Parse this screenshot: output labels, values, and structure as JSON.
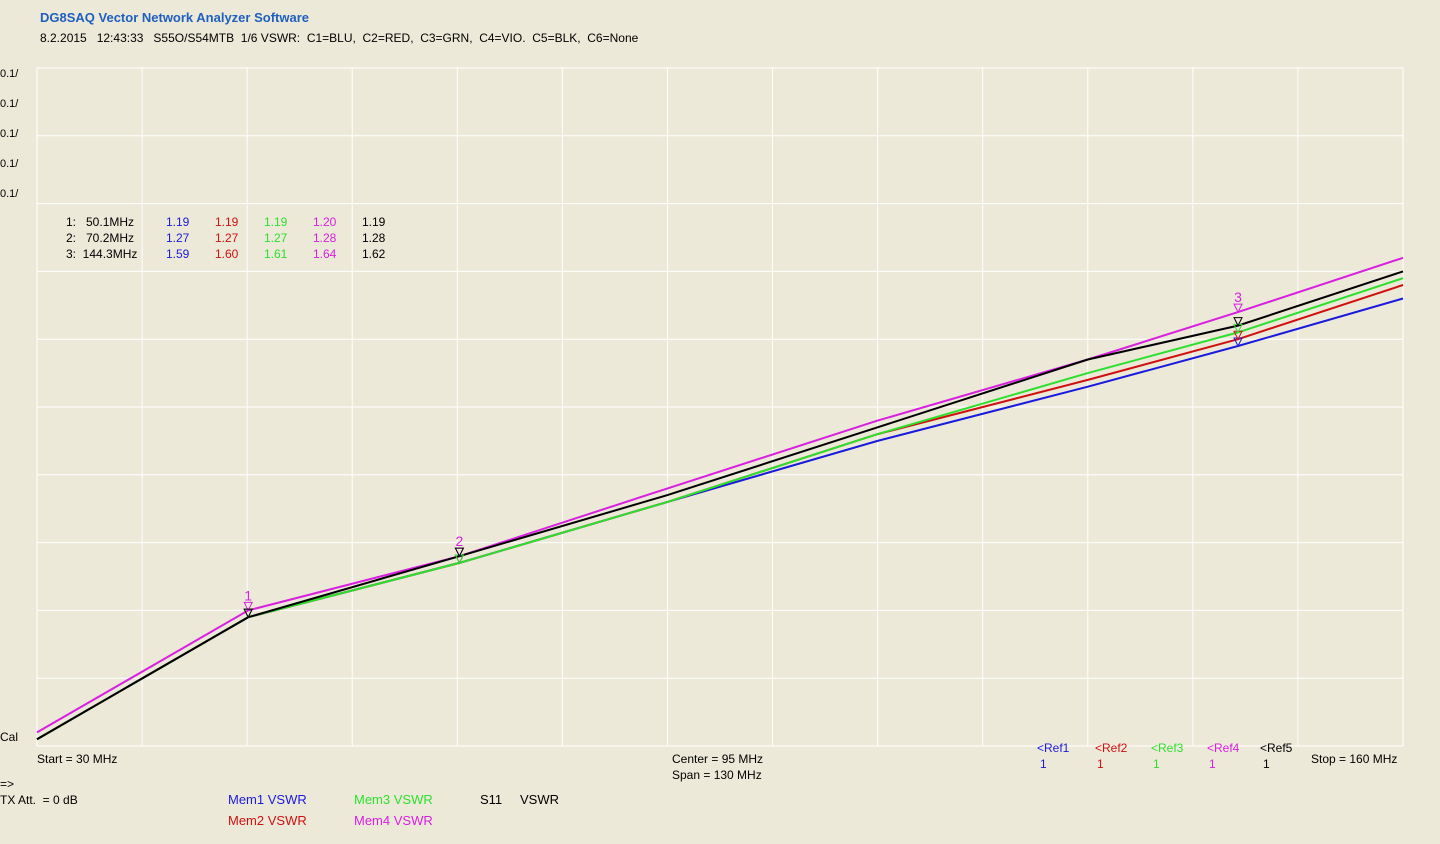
{
  "app": {
    "title": "DG8SAQ Vector Network Analyzer Software",
    "header": "8.2.2015   12:43:33   S55O/S54MTB  1/6 VSWR:  C1=BLU,  C2=RED,  C3=GRN,  C4=VIO.  C5=BLK,  C6=None"
  },
  "colors": {
    "blue": "#1a1adf",
    "red": "#d01010",
    "green": "#2ee02e",
    "violet": "#d91fe0",
    "black": "#000000",
    "grid": "#ffffff",
    "plot_bg": "#ece9d8"
  },
  "scale_labels": [
    {
      "text": "0.1/",
      "color": "#1a1adf"
    },
    {
      "text": "0.1/",
      "color": "#d01010"
    },
    {
      "text": "0.1/",
      "color": "#2ee02e"
    },
    {
      "text": "0.1/",
      "color": "#d91fe0"
    },
    {
      "text": "0.1/",
      "color": "#000000"
    }
  ],
  "marker_table": [
    {
      "label": "1:   50.1MHz",
      "values": [
        "1.19",
        "1.19",
        "1.19",
        "1.20",
        "1.19"
      ]
    },
    {
      "label": "2:   70.2MHz",
      "values": [
        "1.27",
        "1.27",
        "1.27",
        "1.28",
        "1.28"
      ]
    },
    {
      "label": "3:  144.3MHz",
      "values": [
        "1.59",
        "1.60",
        "1.61",
        "1.64",
        "1.62"
      ]
    }
  ],
  "axis": {
    "cal_label": "Cal",
    "start": "Start = 30 MHz",
    "center": "Center = 95 MHz",
    "span": "Span = 130 MHz",
    "stop": "Stop = 160 MHz"
  },
  "refs": [
    {
      "label": "Ref1",
      "num": "1",
      "color": "#1a1adf"
    },
    {
      "label": "Ref2",
      "num": "1",
      "color": "#d01010"
    },
    {
      "label": "Ref3",
      "num": "1",
      "color": "#2ee02e"
    },
    {
      "label": "Ref4",
      "num": "1",
      "color": "#d91fe0"
    },
    {
      "label": "Ref5",
      "num": "1",
      "color": "#000000"
    }
  ],
  "footer": {
    "arrow": "=>",
    "tx_att": "TX Att.  = 0 dB",
    "mem1": "Mem1 VSWR",
    "mem2": "Mem2 VSWR",
    "mem3": "Mem3 VSWR",
    "mem4": "Mem4 VSWR",
    "s11": "S11",
    "vswr": "VSWR"
  },
  "chart_data": {
    "type": "line",
    "title": "",
    "xlabel": "",
    "ylabel": "",
    "xlim": [
      30,
      160
    ],
    "ylim": [
      1.0,
      2.0
    ],
    "grid": true,
    "series": [
      {
        "name": "C1",
        "color": "#1a1adf",
        "x": [
          30,
          50.1,
          70.2,
          90,
          110,
          130,
          144.3,
          160
        ],
        "values": [
          1.01,
          1.19,
          1.27,
          1.36,
          1.45,
          1.53,
          1.59,
          1.66
        ]
      },
      {
        "name": "C2",
        "color": "#d01010",
        "x": [
          30,
          50.1,
          70.2,
          90,
          110,
          130,
          144.3,
          160
        ],
        "values": [
          1.01,
          1.19,
          1.27,
          1.36,
          1.46,
          1.54,
          1.6,
          1.68
        ]
      },
      {
        "name": "C3",
        "color": "#2ee02e",
        "x": [
          30,
          50.1,
          70.2,
          90,
          110,
          130,
          144.3,
          160
        ],
        "values": [
          1.01,
          1.19,
          1.27,
          1.36,
          1.46,
          1.55,
          1.61,
          1.69
        ]
      },
      {
        "name": "C4",
        "color": "#d91fe0",
        "x": [
          30,
          50.1,
          70.2,
          90,
          110,
          130,
          144.3,
          160
        ],
        "values": [
          1.02,
          1.2,
          1.28,
          1.38,
          1.48,
          1.57,
          1.64,
          1.72
        ]
      },
      {
        "name": "C5",
        "color": "#000000",
        "x": [
          30,
          50.1,
          70.2,
          90,
          110,
          130,
          144.3,
          160
        ],
        "values": [
          1.01,
          1.19,
          1.28,
          1.37,
          1.47,
          1.57,
          1.62,
          1.7
        ]
      }
    ],
    "markers": [
      {
        "id": "1",
        "x": 50.1
      },
      {
        "id": "2",
        "x": 70.2
      },
      {
        "id": "3",
        "x": 144.3
      }
    ]
  }
}
